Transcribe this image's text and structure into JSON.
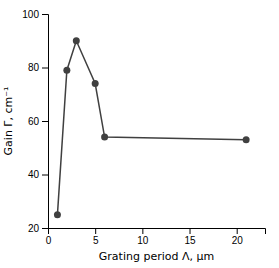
{
  "chart_data": {
    "type": "line",
    "x": [
      1,
      2,
      3,
      5,
      6,
      21
    ],
    "values": [
      25,
      79,
      90,
      74,
      54,
      53
    ],
    "xlabel": "Grating period Λ, μm",
    "ylabel": "Gain Γ, cm⁻¹",
    "xlim": [
      0,
      23
    ],
    "ylim": [
      20,
      100
    ],
    "xticks": [
      0,
      5,
      10,
      15,
      20
    ],
    "yticks": [
      20,
      40,
      60,
      80,
      100
    ],
    "color": "#404040",
    "marker": "circle"
  }
}
